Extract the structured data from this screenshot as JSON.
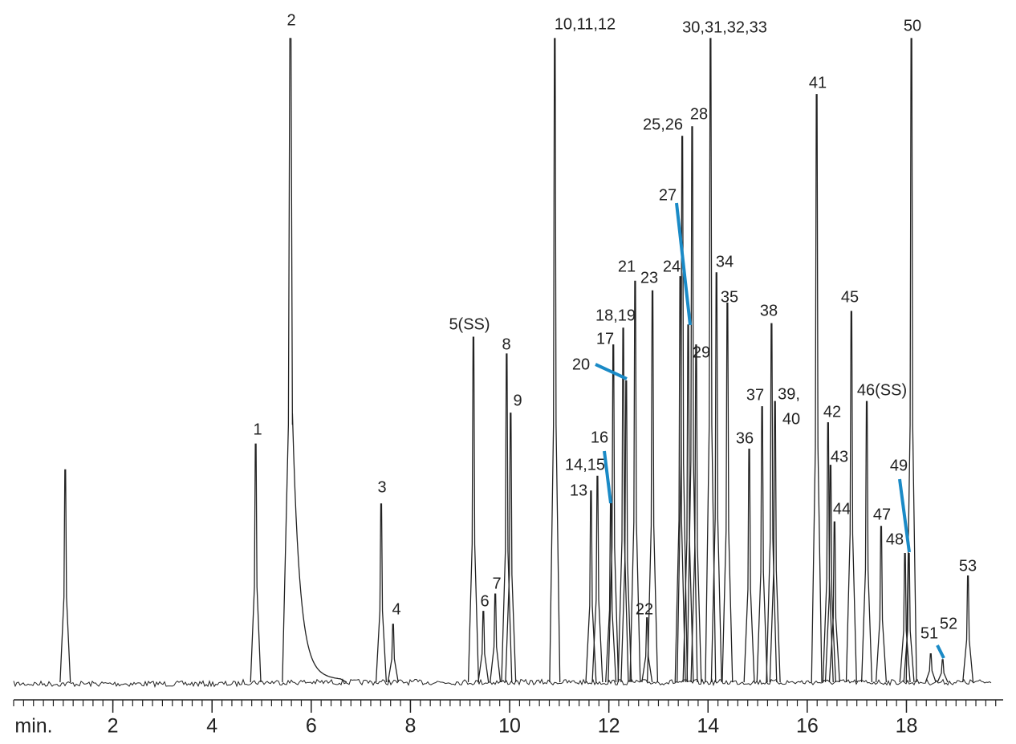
{
  "chart_data": {
    "type": "chromatogram",
    "xlabel": "min.",
    "xlim": [
      0,
      19.95
    ],
    "xticks": [
      2,
      4,
      6,
      8,
      10,
      12,
      14,
      16,
      18
    ],
    "ylim": [
      0,
      100
    ],
    "color": "#222222",
    "leader_color": "#1a8ac6",
    "peak_labels": [
      null,
      "1",
      "2",
      "3",
      "4",
      "5(SS)",
      "6",
      "7",
      "8",
      "9",
      "10,11,12",
      "13",
      "14,15",
      "16",
      "17",
      "18,19",
      "20",
      "21",
      "22",
      "23",
      "24",
      "25,26",
      "27",
      "28",
      "29",
      "30,31,32,33",
      "34",
      "35",
      "36",
      "37",
      "38",
      [
        "39,",
        "40"
      ],
      "41",
      "42",
      "43",
      "44",
      "45",
      "46(SS)",
      "47",
      "48",
      "49",
      "50",
      "51",
      "52",
      "53"
    ],
    "x": [
      1.04,
      4.88,
      5.58,
      7.41,
      7.65,
      9.27,
      9.47,
      9.71,
      9.94,
      10.02,
      10.91,
      11.64,
      11.77,
      12.04,
      12.09,
      12.29,
      12.35,
      12.53,
      12.77,
      12.88,
      13.44,
      13.48,
      13.6,
      13.68,
      13.76,
      14.05,
      14.17,
      14.39,
      14.83,
      15.09,
      15.28,
      15.35,
      16.19,
      16.42,
      16.47,
      16.55,
      16.89,
      17.2,
      17.49,
      17.97,
      18.05,
      18.1,
      18.49,
      18.73,
      19.24
    ],
    "values": [
      33,
      37,
      100,
      27.7,
      9,
      53.6,
      11,
      13.7,
      51,
      41.8,
      100,
      29.7,
      32,
      28,
      52.4,
      55,
      46.8,
      62.3,
      10,
      60.8,
      63,
      84.8,
      55.5,
      86.3,
      52.4,
      100,
      63.6,
      58.9,
      36.2,
      42.8,
      55.7,
      43.6,
      91.3,
      40.3,
      33.7,
      24.9,
      57.6,
      43.6,
      24.2,
      20,
      20,
      100,
      4.4,
      3.5,
      16.5
    ]
  }
}
